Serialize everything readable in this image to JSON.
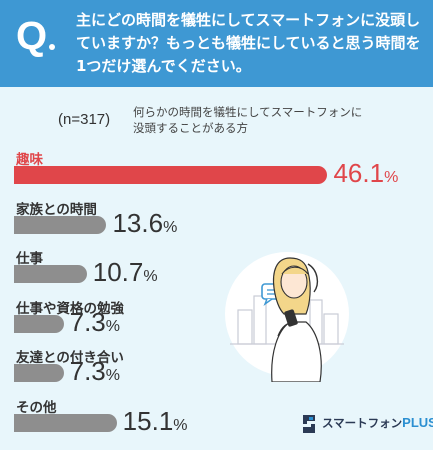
{
  "header": {
    "q_mark": "Q",
    "question": "主にどの時間を犠牲にしてスマートフォンに没頭していますか？もっとも犠牲にしていると思う時間を1つだけ選んでください。"
  },
  "sample": "(n=317)",
  "respondents": "何らかの時間を犠牲にしてスマートフォンに没頭することがある方",
  "colors": {
    "highlight": "#e0464a",
    "bar": "#8e8e8e",
    "header": "#3e98d3",
    "background": "#e8f6fb"
  },
  "chart_data": {
    "type": "bar",
    "orientation": "horizontal",
    "categories": [
      "趣味",
      "家族との時間",
      "仕事",
      "仕事や資格の勉強",
      "友達との付き合い",
      "その他"
    ],
    "values": [
      46.1,
      13.6,
      10.7,
      7.3,
      7.3,
      15.1
    ],
    "value_labels": [
      "46.1",
      "13.6",
      "10.7",
      "7.3",
      "7.3",
      "15.1"
    ],
    "unit": "%",
    "highlight_index": 0
  },
  "logo": {
    "text": "スマートフォン",
    "plus": "PLUS"
  }
}
